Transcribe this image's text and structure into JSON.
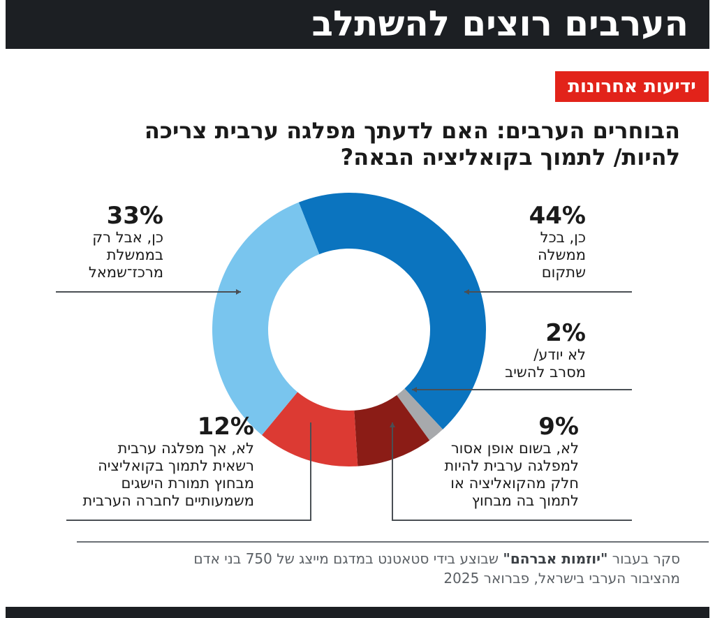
{
  "header": {
    "title": "הערבים רוצים להשתלב"
  },
  "brand": {
    "name": "ידיעות אחרונות"
  },
  "question": {
    "text": "הבוחרים הערבים: האם לדעתך מפלגה ערבית צריכה להיות/ לתמוך בקואליציה הבאה?"
  },
  "chart_data": {
    "type": "pie",
    "subtype": "donut",
    "title": "הבוחרים הערבים: האם לדעתך מפלגה ערבית צריכה להיות/ לתמוך בקואליציה הבאה?",
    "start": "top, clockwise",
    "slices": [
      {
        "pct_label": "44%",
        "value": 44,
        "color": "#0b74bf",
        "lines": [
          "כן, בכל",
          "ממשלה",
          "שתקום"
        ]
      },
      {
        "pct_label": "2%",
        "value": 2,
        "color": "#a7a9ac",
        "lines": [
          "לא יודע/",
          "מסרב להשיב"
        ]
      },
      {
        "pct_label": "9%",
        "value": 9,
        "color": "#8b1c16",
        "lines": [
          "לא, בשום אופן אסור",
          "למפלגה ערבית להיות",
          "חלק מהקואליציה או",
          "לתמוך בה מבחוץ"
        ]
      },
      {
        "pct_label": "12%",
        "value": 12,
        "color": "#dc3a33",
        "lines": [
          "לא, אך מפלגה ערבית",
          "רשאית לתמוך בקואליציה",
          "מבחוץ תמורת הישגים",
          "משמעותיים לחברה הערבית"
        ]
      },
      {
        "pct_label": "33%",
        "value": 33,
        "color": "#79c5ee",
        "lines": [
          "כן, אבל רק",
          "בממשלת",
          "מרכז־שמאל"
        ]
      }
    ]
  },
  "source": {
    "prefix": "סקר בעבור ",
    "org": "\"יוזמות אברהם\"",
    "rest": " שבוצע בידי סטאטנט במדגם מייצג של 750 בני אדם",
    "line2": "מהציבור הערבי בישראל, פברואר 2025"
  }
}
